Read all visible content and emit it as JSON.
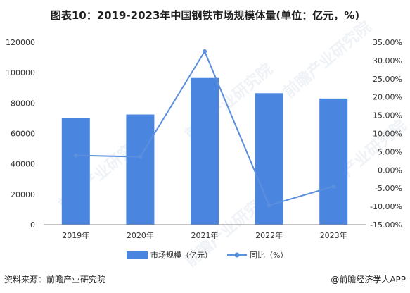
{
  "title": "图表10：2019-2023年中国钢铁市场规模体量(单位：亿元，%)",
  "footer": {
    "source": "资料来源：前瞻产业研究院",
    "brand": "@前瞻经济学人APP"
  },
  "chart_data": {
    "type": "bar",
    "categories": [
      "2019年",
      "2020年",
      "2021年",
      "2022年",
      "2023年"
    ],
    "series": [
      {
        "name": "市场规模（亿元）",
        "type": "bar",
        "axis": "left",
        "color": "#4a86e0",
        "values": [
          70000,
          72500,
          96500,
          86500,
          83000
        ]
      },
      {
        "name": "同比（%）",
        "type": "line",
        "axis": "right",
        "color": "#5b8fdc",
        "values": [
          4.0,
          3.6,
          32.5,
          -9.7,
          -4.5
        ]
      }
    ],
    "y_left": {
      "min": 0,
      "max": 120000,
      "step": 20000,
      "ticks": [
        "0",
        "20000",
        "40000",
        "60000",
        "80000",
        "100000",
        "120000"
      ]
    },
    "y_right": {
      "min": -15,
      "max": 35,
      "step": 5,
      "ticks": [
        "-15.00%",
        "-10.00%",
        "-5.00%",
        "0.00%",
        "5.00%",
        "10.00%",
        "15.00%",
        "20.00%",
        "25.00%",
        "30.00%",
        "35.00%"
      ]
    },
    "grid": false,
    "legend": "bottom-center",
    "watermark": "前瞻产业研究院"
  }
}
